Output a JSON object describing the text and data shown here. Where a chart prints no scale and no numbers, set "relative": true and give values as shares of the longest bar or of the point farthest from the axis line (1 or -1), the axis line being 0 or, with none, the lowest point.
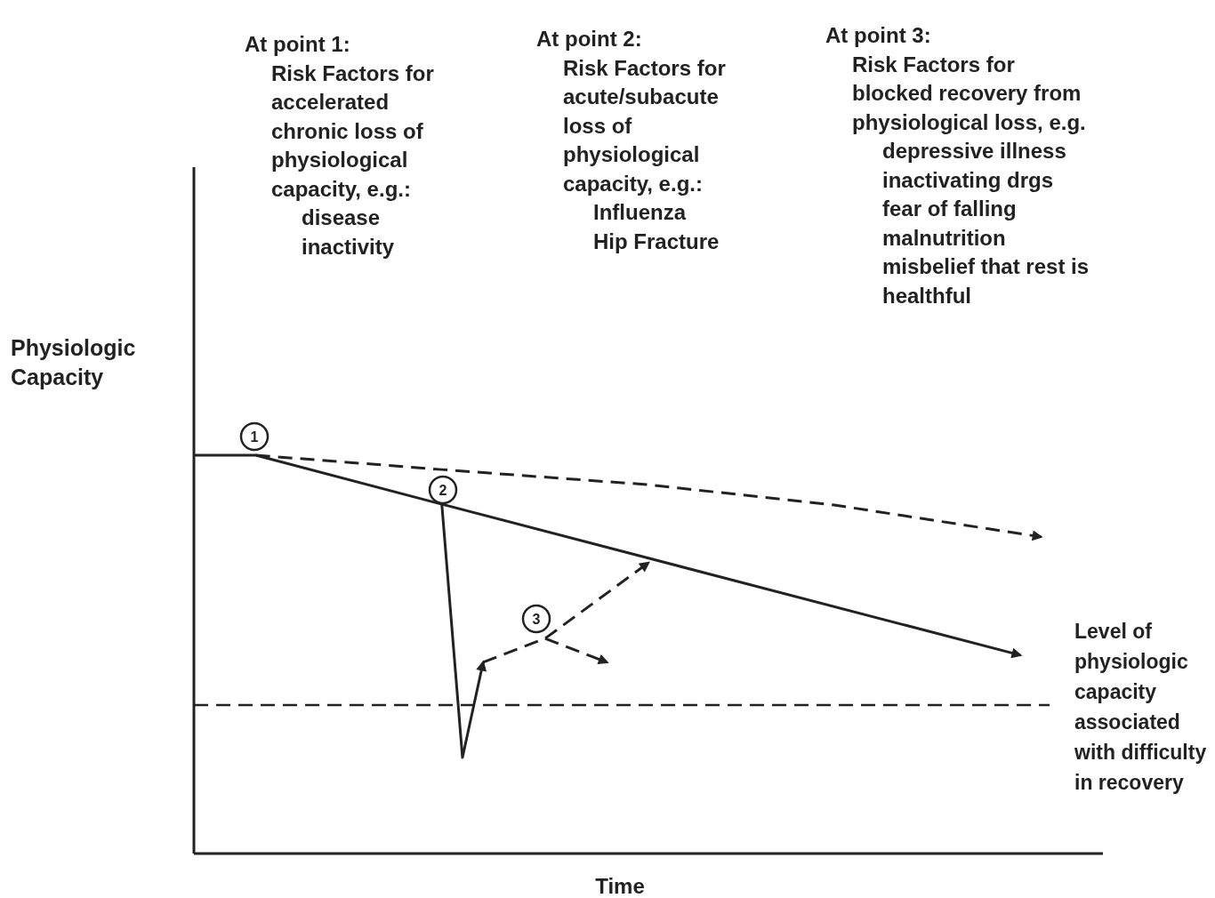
{
  "chart_data": {
    "type": "line",
    "relative": true,
    "xlabel": "Time",
    "ylabel": "Physiologic\nCapacity",
    "categories": [
      null,
      null,
      null,
      null,
      null,
      null,
      null,
      null,
      null,
      null,
      null,
      null,
      null,
      null,
      null,
      null,
      null,
      null,
      null,
      null,
      null,
      null,
      null,
      null,
      null,
      null,
      null,
      null,
      null,
      null,
      null,
      null,
      null,
      null,
      null,
      null,
      null,
      null,
      null,
      null,
      null,
      null,
      null,
      null,
      null
    ],
    "series": [
      {
        "color": "#222222",
        "line_style": "solid",
        "values": [
          1,
          null,
          null,
          1,
          null,
          null,
          null,
          null,
          null,
          null,
          null,
          null,
          0.877,
          null,
          null,
          null,
          null,
          null,
          null,
          null,
          null,
          null,
          null,
          null,
          null,
          null,
          null,
          null,
          null,
          null,
          null,
          null,
          null,
          null,
          null,
          null,
          null,
          null,
          null,
          null,
          0.498,
          null,
          null,
          null,
          null
        ]
      },
      {
        "color": "#222222",
        "line_style": "dashed",
        "values": [
          null,
          null,
          null,
          1,
          null,
          null,
          null,
          null,
          null,
          null,
          null,
          null,
          0.964,
          null,
          null,
          null,
          null,
          null,
          null,
          null,
          null,
          null,
          0.926,
          null,
          null,
          null,
          null,
          null,
          null,
          null,
          null,
          0.875,
          null,
          null,
          null,
          null,
          null,
          null,
          null,
          null,
          null,
          0.795,
          null,
          null,
          null
        ]
      },
      {
        "color": "#222222",
        "line_style": "solid",
        "values": [
          null,
          null,
          null,
          null,
          null,
          null,
          null,
          null,
          null,
          null,
          null,
          null,
          0.877,
          0.241,
          0.48,
          null,
          null,
          null,
          null,
          null,
          null,
          null,
          null,
          null,
          null,
          null,
          null,
          null,
          null,
          null,
          null,
          null,
          null,
          null,
          null,
          null,
          null,
          null,
          null,
          null,
          null,
          null,
          null,
          null,
          null
        ]
      },
      {
        "color": "#222222",
        "line_style": "dashed",
        "values": [
          null,
          null,
          null,
          null,
          null,
          null,
          null,
          null,
          null,
          null,
          null,
          null,
          null,
          null,
          0.48,
          null,
          null,
          0.54,
          null,
          null,
          null,
          null,
          0.73,
          null,
          null,
          null,
          null,
          null,
          null,
          null,
          null,
          null,
          null,
          null,
          null,
          null,
          null,
          null,
          null,
          null,
          null,
          null,
          null,
          null,
          null
        ]
      },
      {
        "color": "#222222",
        "line_style": "dashed",
        "values": [
          null,
          null,
          null,
          null,
          null,
          null,
          null,
          null,
          null,
          null,
          null,
          null,
          null,
          null,
          null,
          null,
          null,
          0.54,
          null,
          null,
          0.48,
          null,
          null,
          null,
          null,
          null,
          null,
          null,
          null,
          null,
          null,
          null,
          null,
          null,
          null,
          null,
          null,
          null,
          null,
          null,
          null,
          null,
          null,
          null,
          null
        ]
      }
    ],
    "ref_lines": [
      {
        "axis": "y",
        "value": 0.373,
        "label": "Level of\nphysiologic\ncapacity\nassociated\nwith difficulty\nin recovery",
        "color": "#222222",
        "line_style": "dashed"
      }
    ],
    "annotations": [
      "At point 1:\nRisk Factors for\naccelerated\nchronic loss of\nphysiological\ncapacity, e.g.:\ndisease\ninactivity",
      "At point 2:\nRisk Factors for\nacute/subacute\nloss of\nphysiological\ncapacity, e.g.:\nInfluenza\nHip Fracture",
      "At point 3:\nRisk Factors for\nblocked recovery from\nphysiological loss, e.g.\ndepressive illness\ninactivating drgs\nfear of falling\nmalnutrition\nmisbelief that rest is\nhealthful",
      "1",
      "2",
      "3"
    ]
  }
}
